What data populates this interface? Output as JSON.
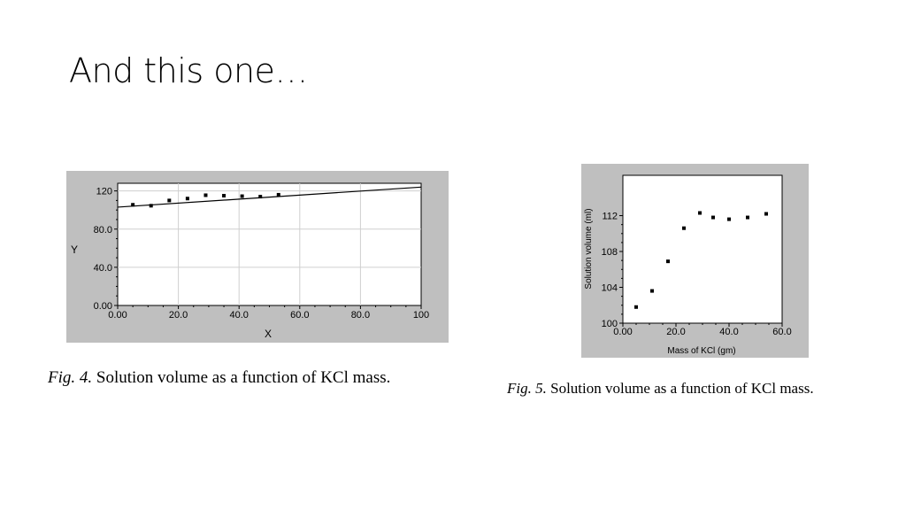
{
  "slide": {
    "title": "And this one…"
  },
  "captions": [
    {
      "prefix": "Fig. 4.",
      "text": "Solution volume as a function of KCl mass."
    },
    {
      "prefix": "Fig. 5.",
      "text": "Solution volume as a function of KCl mass."
    }
  ],
  "colors": {
    "frame": "#bfbfbf",
    "plot": "#ffffff",
    "grid": "#cfcfcf",
    "ink": "#000000"
  },
  "chart_data": [
    {
      "type": "scatter",
      "title": "",
      "xlabel": "X",
      "ylabel": "Y",
      "xlim": [
        0,
        100
      ],
      "ylim": [
        0,
        128
      ],
      "xticks": [
        "0.00",
        "20.0",
        "40.0",
        "60.0",
        "80.0",
        "100"
      ],
      "xtick_values": [
        0,
        20,
        40,
        60,
        80,
        100
      ],
      "yticks": [
        "0.00",
        "40.0",
        "80.0",
        "120"
      ],
      "ytick_values": [
        0,
        40,
        80,
        120
      ],
      "grid": true,
      "series": [
        {
          "x": [
            5,
            11,
            17,
            23,
            29,
            35,
            41,
            47,
            53
          ],
          "y": [
            105.5,
            104.5,
            110,
            112,
            115.5,
            115,
            114.5,
            114,
            116
          ]
        }
      ],
      "trendline": {
        "x": [
          0,
          100
        ],
        "y": [
          103,
          124
        ]
      }
    },
    {
      "type": "scatter",
      "title": "",
      "xlabel": "Mass of KCl  (gm)",
      "ylabel": "Solution volume (ml)",
      "xlim": [
        0,
        60
      ],
      "ylim": [
        100,
        116.5
      ],
      "xticks": [
        "0.00",
        "20.0",
        "40.0",
        "60.0"
      ],
      "xtick_values": [
        0,
        20,
        40,
        60
      ],
      "yticks": [
        "100",
        "104",
        "108",
        "112"
      ],
      "ytick_values": [
        100,
        104,
        108,
        112
      ],
      "grid": false,
      "series": [
        {
          "x": [
            5,
            11,
            17,
            23,
            29,
            34,
            40,
            47,
            54
          ],
          "y": [
            101.8,
            103.6,
            106.9,
            110.6,
            112.3,
            111.8,
            111.6,
            111.8,
            112.2
          ]
        }
      ]
    }
  ]
}
